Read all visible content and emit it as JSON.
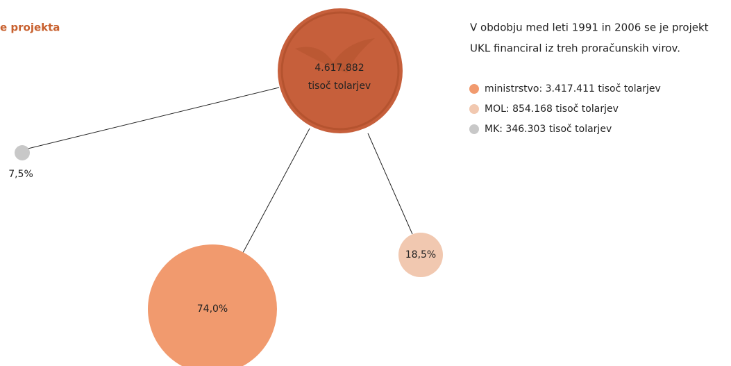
{
  "title": "e projekta",
  "total": {
    "amount": "4.617.882",
    "unit": "tisoč tolarjev"
  },
  "nodes": [
    {
      "label": "7,5%"
    },
    {
      "label": "74,0%"
    },
    {
      "label": "18,5%"
    }
  ],
  "description": [
    "V obdobju med leti 1991 in 2006 se je projekt",
    "UKL financiral iz treh proračunskih virov."
  ],
  "legend": [
    "ministrstvo: 3.417.411 tisoč tolarjev",
    "MOL: 854.168 tisoč tolarjev",
    "MK: 346.303 tisoč tolarjev"
  ]
}
